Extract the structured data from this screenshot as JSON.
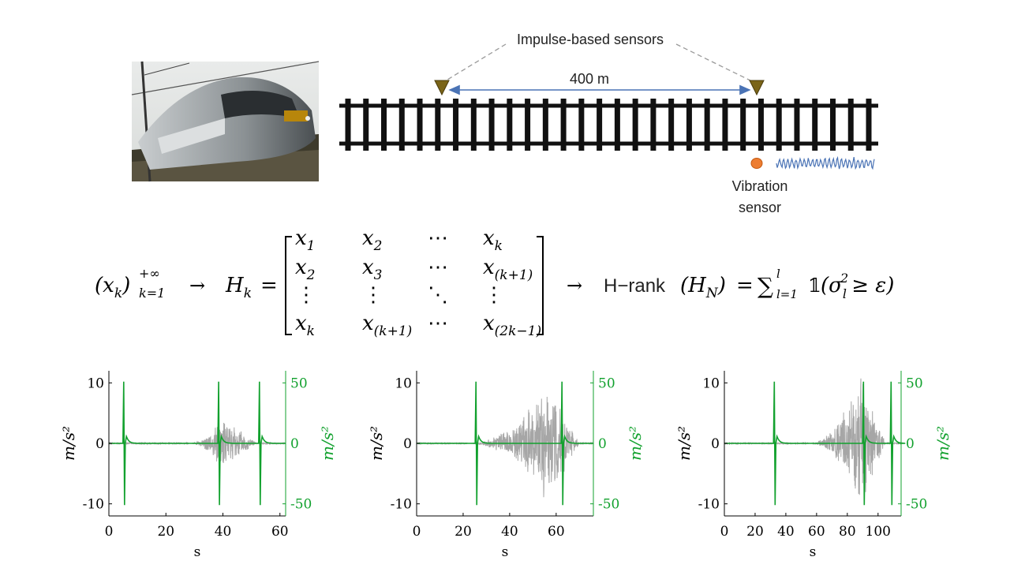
{
  "diagram": {
    "sensors_label": "Impulse-based sensors",
    "distance_label": "400 m",
    "vibration_label_line1": "Vibration",
    "vibration_label_line2": "sensor"
  },
  "formula": {
    "sequence": "(x",
    "sequence_sub": "k",
    "sequence_close": ")",
    "sequence_sup": "+∞",
    "sequence_lower": "k=1",
    "arrow1": "→",
    "hankel_lhs": "H",
    "hankel_lhs_sub": "k",
    "equals": "=",
    "matrix": [
      [
        [
          "x",
          "1"
        ],
        [
          "x",
          "2"
        ],
        [
          "⋯",
          ""
        ],
        [
          "x",
          "k"
        ]
      ],
      [
        [
          "x",
          "2"
        ],
        [
          "x",
          "3"
        ],
        [
          "⋯",
          ""
        ],
        [
          "x",
          "(k+1)"
        ]
      ],
      [
        [
          "⋮",
          ""
        ],
        [
          "⋮",
          ""
        ],
        [
          "⋱",
          ""
        ],
        [
          "⋮",
          ""
        ]
      ],
      [
        [
          "x",
          "k"
        ],
        [
          "x",
          "(k+1)"
        ],
        [
          "⋯",
          ""
        ],
        [
          "x",
          "(2k−1)"
        ]
      ]
    ],
    "arrow2": "→",
    "hrank_label": "H−rank",
    "hrank_arg": "(H",
    "hrank_arg_sub": "N",
    "hrank_arg_close": ")",
    "sum_symbol": "∑",
    "sum_upper": "l",
    "sum_lower": "l=1",
    "indicator": "𝟙",
    "condition": "(σ",
    "condition_sub": "l",
    "condition_sup": "2",
    "condition_rest": "≥ ε)"
  },
  "colors": {
    "rail": "#111111",
    "sensor_marker": "#7a6418",
    "distance_arrow": "#4a73b5",
    "vibration_dot": "#ed7d31",
    "signal_gray": "#a6a6a6",
    "impulse_green": "#12a12e"
  },
  "chart_data": [
    {
      "type": "line",
      "xlabel": "s",
      "ylabel": "m/s²",
      "ylabel_right": "m/s²",
      "xlim": [
        0,
        62
      ],
      "ylim": [
        -12,
        12
      ],
      "ylim_right": [
        -60,
        60
      ],
      "xticks": [
        0,
        20,
        40,
        60
      ],
      "yticks": [
        -10,
        0,
        10
      ],
      "yticks_right": [
        -50,
        0,
        50
      ],
      "vibration_burst": {
        "start": 28,
        "end": 52,
        "peak_at": 40,
        "peak_amplitude": 4.5
      },
      "impulses": [
        5.2,
        38.5,
        52.8
      ],
      "impulse_amplitude": 50,
      "series": [
        {
          "color": "gray",
          "kind": "vibration"
        },
        {
          "color": "green",
          "kind": "impulse"
        }
      ]
    },
    {
      "type": "line",
      "xlabel": "s",
      "ylabel": "m/s²",
      "ylabel_right": "m/s²",
      "xlim": [
        0,
        76
      ],
      "ylim": [
        -12,
        12
      ],
      "ylim_right": [
        -60,
        60
      ],
      "xticks": [
        0,
        20,
        40,
        60
      ],
      "yticks": [
        -10,
        0,
        10
      ],
      "yticks_right": [
        -50,
        0,
        50
      ],
      "vibration_burst": {
        "start": 22,
        "end": 70,
        "peak_at": 57,
        "peak_amplitude": 9.5
      },
      "impulses": [
        25.5,
        62.5
      ],
      "impulse_amplitude": 50,
      "series": [
        {
          "color": "gray",
          "kind": "vibration"
        },
        {
          "color": "green",
          "kind": "impulse"
        }
      ]
    },
    {
      "type": "line",
      "xlabel": "s",
      "ylabel": "m/s²",
      "ylabel_right": "m/s²",
      "xlim": [
        0,
        115
      ],
      "ylim": [
        -12,
        12
      ],
      "ylim_right": [
        -60,
        60
      ],
      "xticks": [
        0,
        20,
        40,
        60,
        80,
        100
      ],
      "yticks": [
        -10,
        0,
        10
      ],
      "yticks_right": [
        -50,
        0,
        50
      ],
      "vibration_burst": {
        "start": 55,
        "end": 105,
        "peak_at": 88,
        "peak_amplitude": 10.5
      },
      "impulses": [
        32.5,
        90.5,
        108.5
      ],
      "impulse_amplitude": 50,
      "series": [
        {
          "color": "gray",
          "kind": "vibration"
        },
        {
          "color": "green",
          "kind": "impulse"
        }
      ]
    }
  ]
}
